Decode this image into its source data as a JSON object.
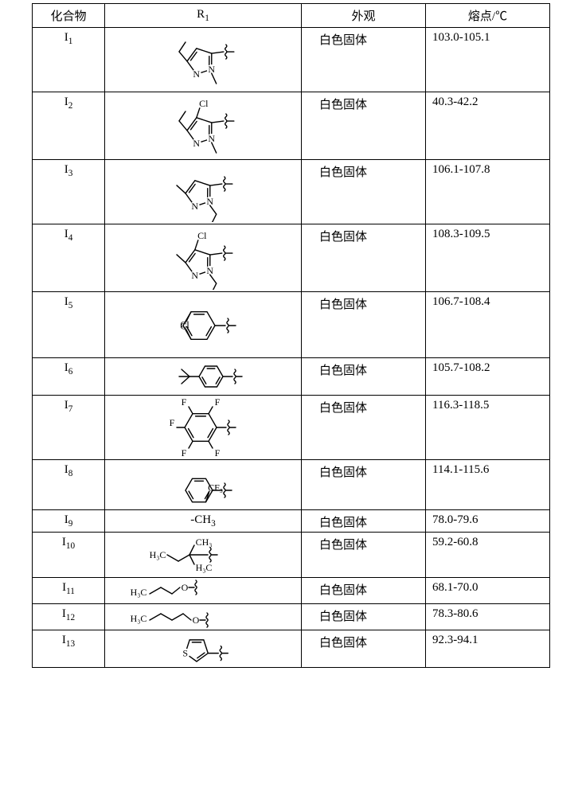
{
  "table": {
    "headers": {
      "compound": "化合物",
      "r1": "R",
      "r1_sub": "1",
      "appearance": "外观",
      "mp": "熔点/℃"
    },
    "rows": [
      {
        "compound_base": "I",
        "compound_sub": "1",
        "r1_kind": "svg-pyrazole-a",
        "r1_text": "",
        "r1_h": 76,
        "appearance": "白色固体",
        "mp": "103.0-105.1"
      },
      {
        "compound_base": "I",
        "compound_sub": "2",
        "r1_kind": "svg-pyrazole-a-cl",
        "r1_text": "",
        "r1_h": 80,
        "appearance": "白色固体",
        "mp": "40.3-42.2"
      },
      {
        "compound_base": "I",
        "compound_sub": "3",
        "r1_kind": "svg-pyrazole-b",
        "r1_text": "",
        "r1_h": 76,
        "appearance": "白色固体",
        "mp": "106.1-107.8"
      },
      {
        "compound_base": "I",
        "compound_sub": "4",
        "r1_kind": "svg-pyrazole-b-cl",
        "r1_text": "",
        "r1_h": 80,
        "appearance": "白色固体",
        "mp": "108.3-109.5"
      },
      {
        "compound_base": "I",
        "compound_sub": "5",
        "r1_kind": "svg-dcb",
        "r1_text": "",
        "r1_h": 78,
        "appearance": "白色固体",
        "mp": "106.7-108.4"
      },
      {
        "compound_base": "I",
        "compound_sub": "6",
        "r1_kind": "svg-tbu-ph",
        "r1_text": "",
        "r1_h": 42,
        "appearance": "白色固体",
        "mp": "105.7-108.2"
      },
      {
        "compound_base": "I",
        "compound_sub": "7",
        "r1_kind": "svg-f5ph",
        "r1_text": "",
        "r1_h": 76,
        "appearance": "白色固体",
        "mp": "116.3-118.5"
      },
      {
        "compound_base": "I",
        "compound_sub": "8",
        "r1_kind": "svg-cf3ph",
        "r1_text": "",
        "r1_h": 58,
        "appearance": "白色固体",
        "mp": "114.1-115.6"
      },
      {
        "compound_base": "I",
        "compound_sub": "9",
        "r1_kind": "text",
        "r1_text": "-CH",
        "r1_text_sub": "3",
        "r1_h": 22,
        "appearance": "白色固体",
        "mp": "78.0-79.6"
      },
      {
        "compound_base": "I",
        "compound_sub": "10",
        "r1_kind": "svg-tamyl",
        "r1_text": "",
        "r1_h": 52,
        "appearance": "白色固体",
        "mp": "59.2-60.8"
      },
      {
        "compound_base": "I",
        "compound_sub": "11",
        "r1_kind": "svg-propoxy",
        "r1_text": "",
        "r1_h": 28,
        "appearance": "白色固体",
        "mp": "68.1-70.0"
      },
      {
        "compound_base": "I",
        "compound_sub": "12",
        "r1_kind": "svg-butoxy",
        "r1_text": "",
        "r1_h": 28,
        "appearance": "白色固体",
        "mp": "78.3-80.6"
      },
      {
        "compound_base": "I",
        "compound_sub": "13",
        "r1_kind": "svg-thiophene",
        "r1_text": "",
        "r1_h": 42,
        "appearance": "白色固体",
        "mp": "92.3-94.1"
      }
    ],
    "style": {
      "stroke": "#000000",
      "stroke_width": 1.4,
      "font": "Times New Roman"
    }
  }
}
